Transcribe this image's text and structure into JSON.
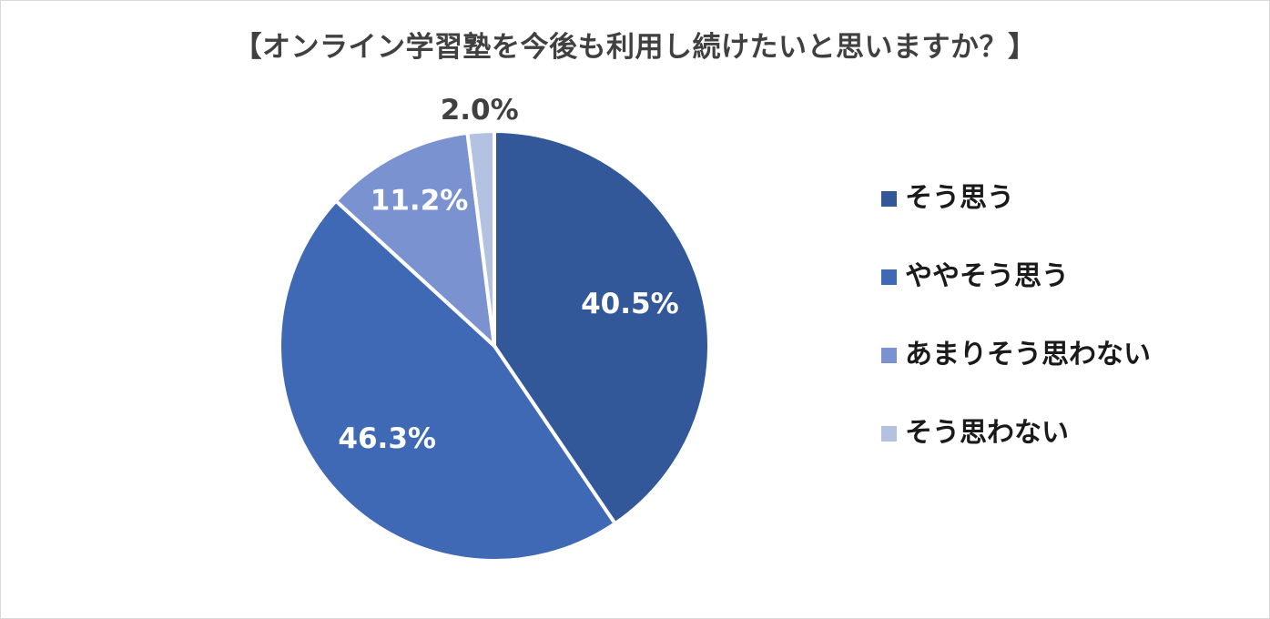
{
  "chart_data": {
    "type": "pie",
    "title": "【オンライン学習塾を今後も利用し続けたいと思いますか？】",
    "unit": "%",
    "slices": [
      {
        "label": "そう思う",
        "value": 40.5,
        "display": "40.5%",
        "color": "#325899"
      },
      {
        "label": "ややそう思う",
        "value": 46.3,
        "display": "46.3%",
        "color": "#3f69b4"
      },
      {
        "label": "あまりそう思わない",
        "value": 11.2,
        "display": "11.2%",
        "color": "#7a92cf"
      },
      {
        "label": "そう思わない",
        "value": 2.0,
        "display": "2.0%",
        "color": "#b4c2e2"
      }
    ],
    "legend_position": "right"
  }
}
